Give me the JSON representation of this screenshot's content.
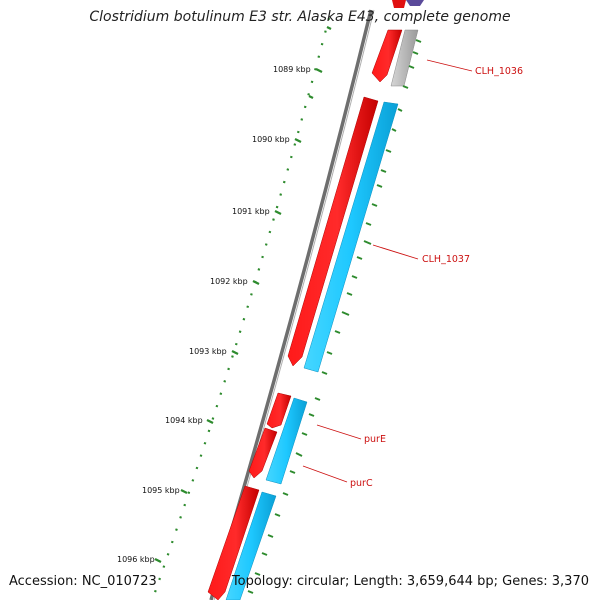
{
  "title": "Clostridium botulinum E3 str. Alaska E43, complete genome",
  "footer": {
    "accession": "Accession: NC_010723",
    "topology": "Topology: circular; Length: 3,659,644 bp; Genes: 3,370"
  },
  "ticks": [
    "1089 kbp",
    "1090 kbp",
    "1091 kbp",
    "1092 kbp",
    "1093 kbp",
    "1094 kbp",
    "1095 kbp",
    "1096 kbp"
  ],
  "genes": [
    "CLH_1036",
    "CLH_1037",
    "purE",
    "purC"
  ],
  "colors": {
    "forward": "#ff0000",
    "cds": "#1ec8ff",
    "backbone": "#7a7a7a",
    "tick": "#2e8b2e",
    "label": "#cc1111",
    "grey_cds": "#bdbdbd",
    "purple": "#5a4a9a"
  }
}
